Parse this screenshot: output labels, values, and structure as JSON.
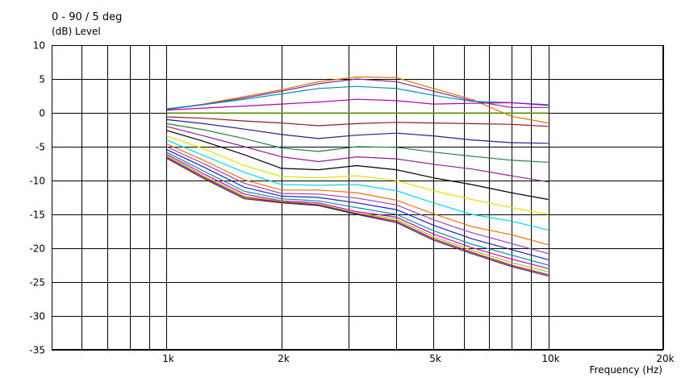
{
  "chart_data": {
    "type": "line",
    "title": "0 - 90 / 5 deg",
    "ylabel": "(dB)  Level",
    "xlabel": "Frequency  (Hz)",
    "x_scale": "log",
    "xlim": [
      500,
      20000
    ],
    "ylim": [
      -35,
      10
    ],
    "grid": true,
    "x_ticks": [
      {
        "value": 1000,
        "label": "1k"
      },
      {
        "value": 2000,
        "label": "2k"
      },
      {
        "value": 5000,
        "label": "5k"
      },
      {
        "value": 10000,
        "label": "10k"
      },
      {
        "value": 20000,
        "label": "20k"
      }
    ],
    "x_minor_gridlines": [
      600,
      700,
      800,
      900,
      3000,
      4000,
      6000,
      7000,
      8000,
      9000
    ],
    "y_ticks": [
      10,
      5,
      0,
      -5,
      -10,
      -15,
      -20,
      -25,
      -30,
      -35
    ],
    "x": [
      1000,
      1250,
      1600,
      2000,
      2500,
      3150,
      4000,
      5000,
      6300,
      8000,
      10000
    ],
    "series": [
      {
        "color": "#e07000",
        "values": [
          0.5,
          1.3,
          2.4,
          3.4,
          4.6,
          5.3,
          5.2,
          3.6,
          2.0,
          -0.5,
          -1.5
        ]
      },
      {
        "color": "#7a2a9a",
        "values": [
          0.5,
          1.2,
          2.2,
          3.2,
          4.3,
          5.0,
          4.6,
          3.2,
          1.8,
          0.8,
          0.8
        ]
      },
      {
        "color": "#008cb0",
        "values": [
          0.6,
          1.2,
          2.0,
          2.8,
          3.6,
          3.9,
          3.6,
          2.6,
          1.7,
          1.5,
          1.2
        ]
      },
      {
        "color": "#b000b0",
        "values": [
          0.4,
          0.7,
          1.0,
          1.3,
          1.6,
          2.0,
          1.8,
          1.3,
          1.4,
          1.5,
          1.1
        ]
      },
      {
        "color": "#80c000",
        "values": [
          0.0,
          0.0,
          0.0,
          0.0,
          0.0,
          0.0,
          0.0,
          0.0,
          0.0,
          0.0,
          0.0
        ]
      },
      {
        "color": "#a01030",
        "values": [
          -0.6,
          -0.8,
          -1.2,
          -1.5,
          -1.9,
          -1.6,
          -1.4,
          -1.5,
          -1.6,
          -1.7,
          -2.0
        ]
      },
      {
        "color": "#202090",
        "values": [
          -1.0,
          -1.6,
          -2.4,
          -3.2,
          -3.8,
          -3.3,
          -3.0,
          -3.4,
          -4.0,
          -4.4,
          -4.5
        ]
      },
      {
        "color": "#208040",
        "values": [
          -1.6,
          -2.5,
          -3.8,
          -5.2,
          -5.7,
          -5.0,
          -5.1,
          -5.8,
          -6.4,
          -7.0,
          -7.3
        ]
      },
      {
        "color": "#9a1a9a",
        "values": [
          -2.0,
          -3.4,
          -5.0,
          -6.5,
          -7.2,
          -6.5,
          -6.8,
          -7.6,
          -8.3,
          -9.3,
          -10.2
        ]
      },
      {
        "color": "#000000",
        "values": [
          -2.6,
          -4.2,
          -6.2,
          -8.2,
          -8.4,
          -7.8,
          -8.4,
          -9.6,
          -10.6,
          -11.8,
          -12.8
        ]
      },
      {
        "color": "#e8e000",
        "values": [
          -3.4,
          -5.3,
          -7.8,
          -9.4,
          -9.6,
          -9.3,
          -10.0,
          -11.5,
          -12.8,
          -14.0,
          -15.0
        ]
      },
      {
        "color": "#00d8e8",
        "values": [
          -4.0,
          -6.3,
          -8.8,
          -10.6,
          -10.7,
          -10.6,
          -11.5,
          -13.3,
          -15.0,
          -16.0,
          -17.3
        ]
      },
      {
        "color": "#f07000",
        "values": [
          -4.6,
          -7.0,
          -9.9,
          -11.4,
          -11.4,
          -11.8,
          -12.9,
          -14.9,
          -16.8,
          -18.0,
          -19.5
        ]
      },
      {
        "color": "#9a40c0",
        "values": [
          -5.0,
          -7.5,
          -10.4,
          -11.9,
          -12.0,
          -12.6,
          -13.6,
          -15.8,
          -17.7,
          -19.3,
          -20.8
        ]
      },
      {
        "color": "#2020b0",
        "values": [
          -5.4,
          -8.0,
          -11.0,
          -12.3,
          -12.5,
          -13.3,
          -14.3,
          -16.6,
          -18.6,
          -20.2,
          -21.7
        ]
      },
      {
        "color": "#1090a0",
        "values": [
          -5.8,
          -8.6,
          -11.6,
          -12.7,
          -13.0,
          -14.0,
          -15.0,
          -17.4,
          -19.4,
          -21.0,
          -22.5
        ]
      },
      {
        "color": "#d000d0",
        "values": [
          -6.1,
          -9.0,
          -12.0,
          -13.0,
          -13.3,
          -14.6,
          -15.4,
          -17.9,
          -19.9,
          -21.6,
          -23.0
        ]
      },
      {
        "color": "#90d000",
        "values": [
          -6.3,
          -9.3,
          -12.3,
          -13.1,
          -13.5,
          -14.8,
          -15.7,
          -18.3,
          -20.3,
          -22.1,
          -23.5
        ]
      },
      {
        "color": "#c01030",
        "values": [
          -6.5,
          -9.5,
          -12.5,
          -13.2,
          -13.6,
          -14.9,
          -16.0,
          -18.6,
          -20.6,
          -22.5,
          -23.9
        ]
      },
      {
        "color": "#303070",
        "values": [
          -6.7,
          -9.7,
          -12.7,
          -13.3,
          -13.7,
          -15.0,
          -16.2,
          -18.8,
          -20.8,
          -22.7,
          -24.1
        ]
      }
    ]
  }
}
